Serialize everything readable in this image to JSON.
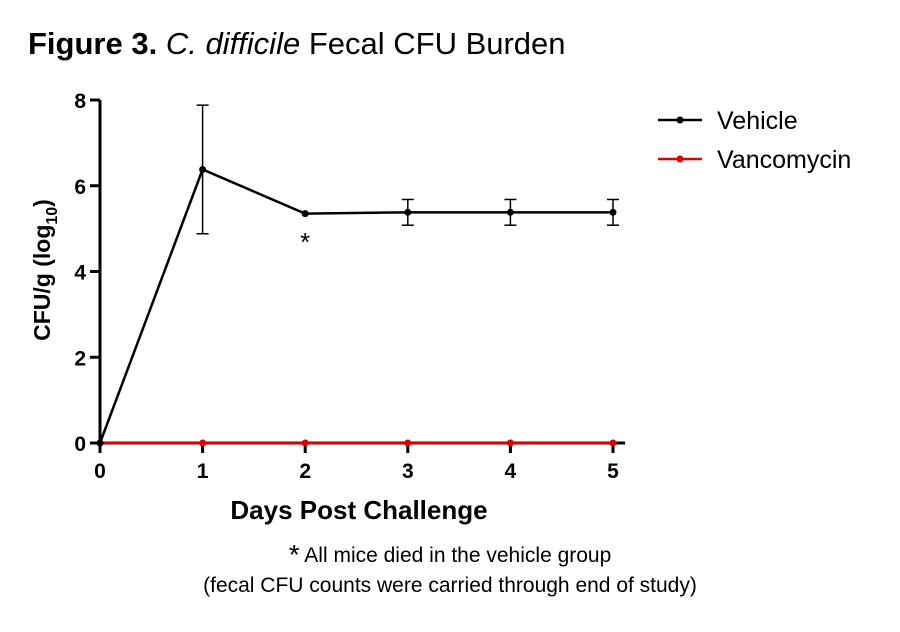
{
  "title": {
    "figure": "Figure 3.",
    "organism": "C. difficile",
    "rest": "Fecal CFU  Burden"
  },
  "chart_data": {
    "type": "line",
    "xlabel": "Days Post Challenge",
    "ylabel": "CFU/g (log",
    "ylabel_sub": "10",
    "ylabel_close": ")",
    "x": [
      0,
      1,
      2,
      3,
      4,
      5
    ],
    "xlim": [
      0,
      5
    ],
    "ylim": [
      0,
      8
    ],
    "y_ticks": [
      0,
      2,
      4,
      6,
      8
    ],
    "x_ticks": [
      0,
      1,
      2,
      3,
      4,
      5
    ],
    "grid": false,
    "legend_position": "top-right",
    "series": [
      {
        "name": "Vehicle",
        "color": "#000000",
        "values": [
          0,
          6.38,
          5.35,
          5.38,
          5.38,
          5.38
        ],
        "error": [
          0,
          1.5,
          0,
          0.3,
          0.3,
          0.3
        ]
      },
      {
        "name": "Vancomycin",
        "color": "#e00000",
        "values": [
          0,
          0,
          0,
          0,
          0,
          0
        ],
        "error": [
          0,
          0,
          0,
          0,
          0,
          0
        ]
      }
    ],
    "annotations": [
      {
        "text": "*",
        "x": 2,
        "y": 4.9
      }
    ]
  },
  "footnote": {
    "star": "*",
    "line1": " All mice died in the vehicle group",
    "line2": "(fecal CFU counts were carried through end of study)"
  }
}
